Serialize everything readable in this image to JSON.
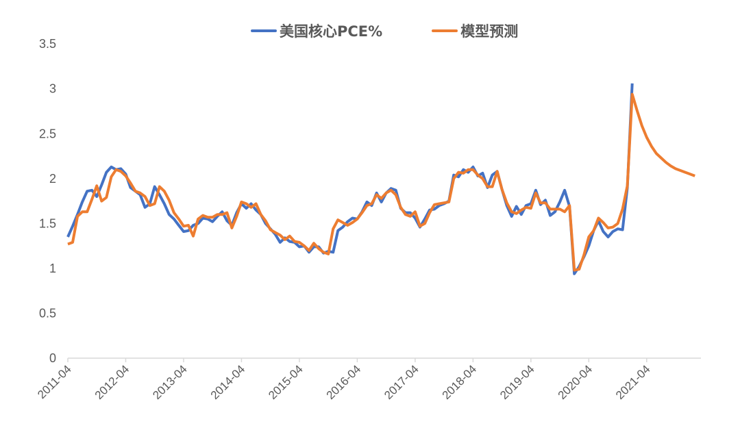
{
  "legend": {
    "series1": {
      "label": "美国核心PCE%",
      "color": "#4472C4"
    },
    "series2": {
      "label": "模型预测",
      "color": "#ED7D31"
    }
  },
  "chart_data": {
    "type": "line",
    "title": "",
    "xlabel": "",
    "ylabel": "",
    "ylim": [
      0,
      3.5
    ],
    "yticks": [
      0,
      0.5,
      1,
      1.5,
      2,
      2.5,
      3,
      3.5
    ],
    "ytick_labels": [
      "0",
      "0.5",
      "1",
      "1.5",
      "2",
      "2.5",
      "3",
      "3.5"
    ],
    "xtick_labels": [
      "2011-04",
      "2012-04",
      "2013-04",
      "2014-04",
      "2015-04",
      "2016-04",
      "2017-04",
      "2018-04",
      "2019-04",
      "2020-04",
      "2021-04"
    ],
    "x_start": "2011-04",
    "x_freq": "monthly",
    "grid": false,
    "legend_position": "top",
    "series": [
      {
        "name": "美国核心PCE%",
        "color": "#4472C4",
        "values": [
          1.35,
          1.47,
          1.6,
          1.74,
          1.86,
          1.87,
          1.8,
          1.93,
          2.07,
          2.13,
          2.1,
          2.11,
          2.05,
          1.9,
          1.86,
          1.82,
          1.68,
          1.72,
          1.91,
          1.82,
          1.72,
          1.6,
          1.55,
          1.48,
          1.41,
          1.42,
          1.48,
          1.5,
          1.56,
          1.55,
          1.52,
          1.58,
          1.63,
          1.53,
          1.48,
          1.62,
          1.72,
          1.67,
          1.72,
          1.65,
          1.6,
          1.5,
          1.44,
          1.38,
          1.29,
          1.34,
          1.3,
          1.29,
          1.24,
          1.25,
          1.18,
          1.24,
          1.24,
          1.17,
          1.19,
          1.18,
          1.42,
          1.46,
          1.52,
          1.56,
          1.55,
          1.63,
          1.74,
          1.7,
          1.84,
          1.74,
          1.84,
          1.89,
          1.87,
          1.67,
          1.62,
          1.62,
          1.56,
          1.46,
          1.55,
          1.65,
          1.66,
          1.7,
          1.72,
          1.75,
          2.04,
          2.02,
          2.1,
          2.07,
          2.13,
          2.03,
          2.06,
          1.9,
          2.04,
          2.08,
          1.88,
          1.7,
          1.58,
          1.69,
          1.6,
          1.7,
          1.72,
          1.87,
          1.71,
          1.76,
          1.59,
          1.63,
          1.74,
          1.87,
          1.69,
          0.94,
          1.02,
          1.13,
          1.25,
          1.42,
          1.53,
          1.41,
          1.35,
          1.41,
          1.44,
          1.43,
          1.9,
          3.06
        ],
        "values_note": "approximate monthly values read from chart, 2011-04 to 2021-04"
      },
      {
        "name": "模型预测",
        "color": "#ED7D31",
        "values": [
          1.27,
          1.29,
          1.58,
          1.63,
          1.63,
          1.77,
          1.92,
          1.75,
          1.79,
          2.02,
          2.1,
          2.08,
          2.03,
          1.95,
          1.86,
          1.84,
          1.8,
          1.7,
          1.72,
          1.91,
          1.86,
          1.76,
          1.62,
          1.55,
          1.47,
          1.48,
          1.36,
          1.55,
          1.59,
          1.57,
          1.57,
          1.6,
          1.6,
          1.62,
          1.45,
          1.58,
          1.74,
          1.72,
          1.68,
          1.72,
          1.6,
          1.53,
          1.43,
          1.4,
          1.37,
          1.32,
          1.36,
          1.3,
          1.29,
          1.25,
          1.2,
          1.28,
          1.22,
          1.18,
          1.16,
          1.44,
          1.54,
          1.51,
          1.48,
          1.51,
          1.55,
          1.62,
          1.7,
          1.72,
          1.82,
          1.78,
          1.84,
          1.87,
          1.82,
          1.68,
          1.6,
          1.58,
          1.63,
          1.47,
          1.5,
          1.62,
          1.71,
          1.72,
          1.73,
          1.74,
          2.0,
          2.07,
          2.06,
          2.1,
          2.1,
          2.04,
          2.0,
          1.91,
          1.91,
          2.08,
          1.88,
          1.73,
          1.63,
          1.61,
          1.65,
          1.68,
          1.67,
          1.84,
          1.73,
          1.73,
          1.66,
          1.66,
          1.66,
          1.63,
          1.7,
          0.98,
          0.99,
          1.15,
          1.35,
          1.42,
          1.56,
          1.51,
          1.45,
          1.46,
          1.5,
          1.66,
          1.92,
          2.94,
          2.76,
          2.59,
          2.46,
          2.36,
          2.28,
          2.23,
          2.18,
          2.14,
          2.11,
          2.09,
          2.07,
          2.05,
          2.03
        ],
        "values_note": "approximate monthly values read from chart, 2011-04 to 2022-03"
      }
    ]
  }
}
